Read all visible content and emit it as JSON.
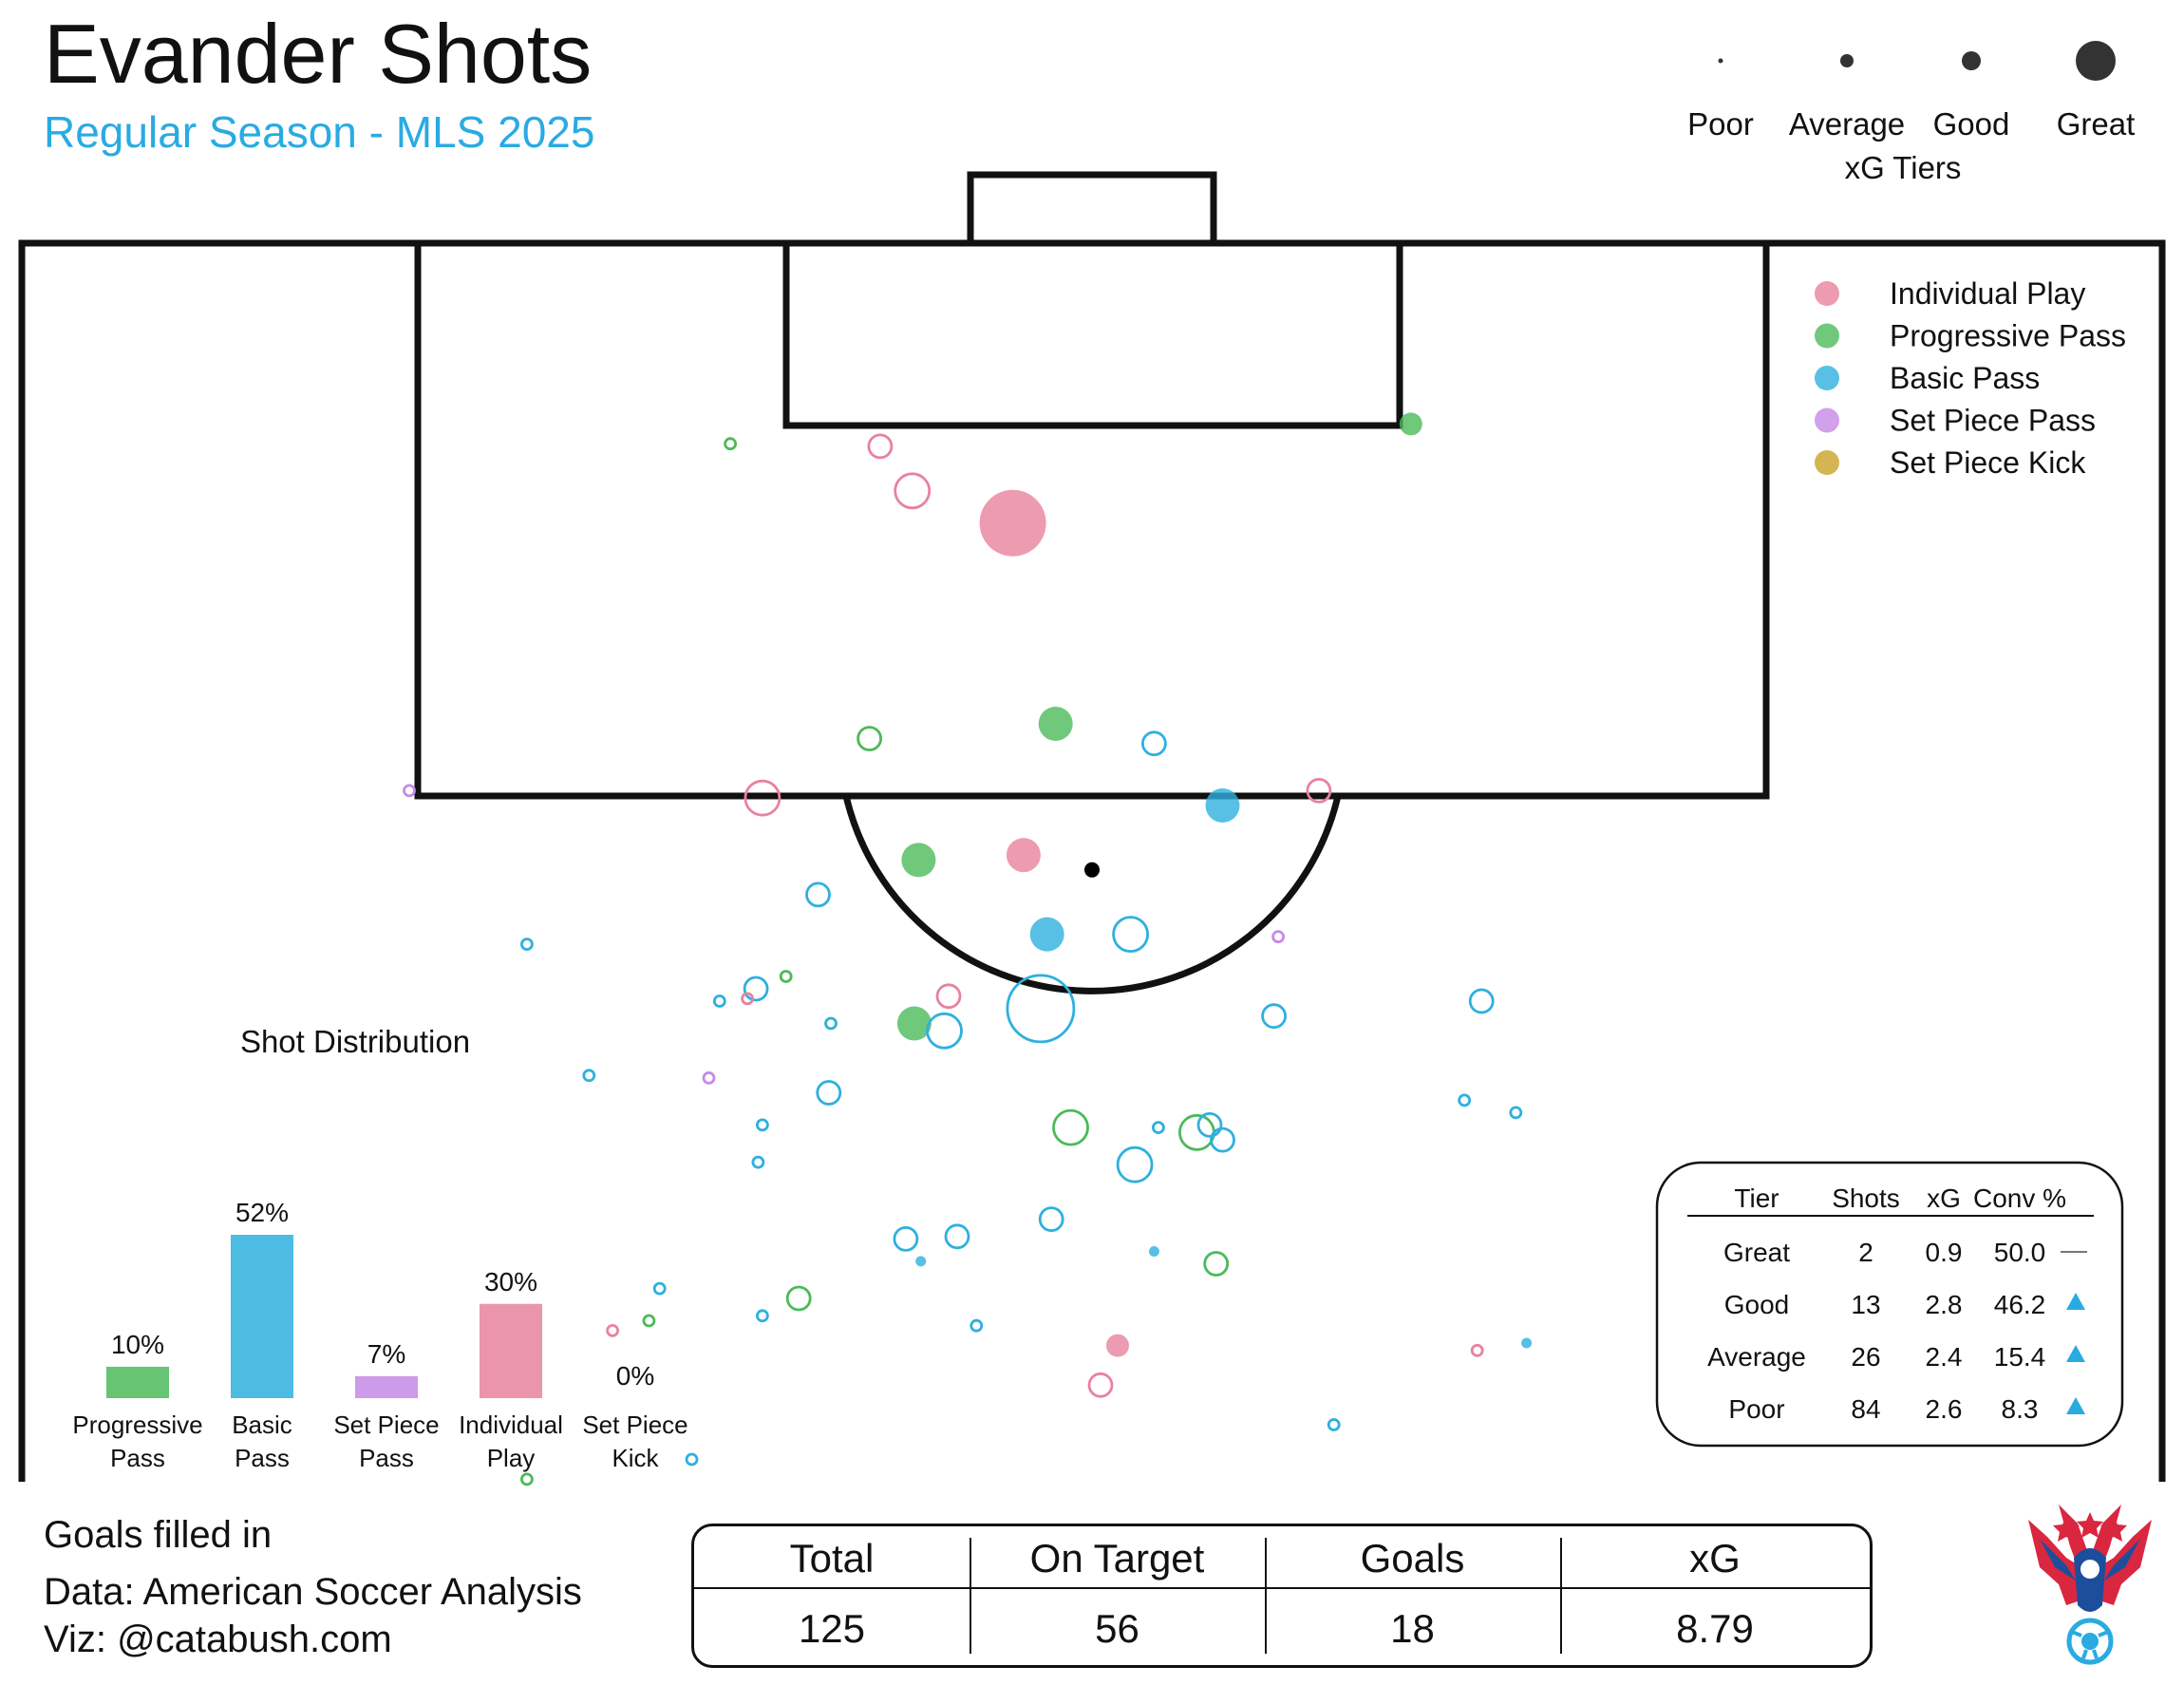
{
  "header": {
    "title": "Evander Shots",
    "subtitle": "Regular Season - MLS 2025"
  },
  "colors": {
    "individual_play": "#e8829d",
    "progressive_pass": "#4cba5a",
    "basic_pass": "#2eb0de",
    "set_piece_pass": "#c68ae6",
    "set_piece_kick": "#c9a227",
    "subtitle": "#29abe2",
    "arrow": "#29abe2"
  },
  "size_legend": {
    "title": "xG Tiers",
    "tiers": [
      "Poor",
      "Average",
      "Good",
      "Great"
    ]
  },
  "type_legend": [
    "Individual Play",
    "Progressive Pass",
    "Basic Pass",
    "Set Piece Pass",
    "Set Piece Kick"
  ],
  "tier_table": {
    "headers": [
      "Tier",
      "Shots",
      "xG",
      "Conv %"
    ],
    "rows": [
      {
        "tier": "Great",
        "shots": "2",
        "xg": "0.9",
        "conv": "50.0",
        "trend": "flat"
      },
      {
        "tier": "Good",
        "shots": "13",
        "xg": "2.8",
        "conv": "46.2",
        "trend": "up"
      },
      {
        "tier": "Average",
        "shots": "26",
        "xg": "2.4",
        "conv": "15.4",
        "trend": "up"
      },
      {
        "tier": "Poor",
        "shots": "84",
        "xg": "2.6",
        "conv": "8.3",
        "trend": "up"
      }
    ]
  },
  "summary": {
    "headers": [
      "Total",
      "On Target",
      "Goals",
      "xG"
    ],
    "values": [
      "125",
      "56",
      "18",
      "8.79"
    ]
  },
  "credits": {
    "note": "Goals filled in",
    "data": "Data: American Soccer Analysis",
    "viz": "Viz: @catabush.com"
  },
  "chart_data": [
    {
      "type": "bar",
      "title": "Shot Distribution",
      "categories": [
        [
          "Progressive",
          "Pass"
        ],
        [
          "Basic",
          "Pass"
        ],
        [
          "Set Piece",
          "Pass"
        ],
        [
          "Individual",
          "Play"
        ],
        [
          "Set Piece",
          "Kick"
        ]
      ],
      "series_keys": [
        "progressive_pass",
        "basic_pass",
        "set_piece_pass",
        "individual_play",
        "set_piece_kick"
      ],
      "values": [
        10,
        52,
        7,
        30,
        0
      ],
      "value_labels": [
        "10%",
        "52%",
        "7%",
        "30%",
        "0%"
      ],
      "ylim": [
        0,
        52
      ]
    },
    {
      "type": "scatter",
      "description_units": "pitch attacking half: x 0-100 across width, y 0-50 from goal line",
      "size_key": {
        "poor": 1,
        "average": 2,
        "good": 3,
        "great": 4
      },
      "points": [
        {
          "x": 46.3,
          "y": 11.3,
          "t": "individual_play",
          "s": 4,
          "g": true
        },
        {
          "x": 40.1,
          "y": 8.2,
          "t": "individual_play",
          "s": 2,
          "g": false
        },
        {
          "x": 41.6,
          "y": 10.0,
          "t": "individual_play",
          "s": 3,
          "g": false
        },
        {
          "x": 33.1,
          "y": 8.1,
          "t": "progressive_pass",
          "s": 1,
          "g": false
        },
        {
          "x": 64.9,
          "y": 7.3,
          "t": "progressive_pass",
          "s": 2,
          "g": true
        },
        {
          "x": 48.3,
          "y": 19.4,
          "t": "progressive_pass",
          "s": 3,
          "g": true
        },
        {
          "x": 39.6,
          "y": 20.0,
          "t": "progressive_pass",
          "s": 2,
          "g": false
        },
        {
          "x": 52.9,
          "y": 20.2,
          "t": "basic_pass",
          "s": 2,
          "g": false
        },
        {
          "x": 34.6,
          "y": 22.4,
          "t": "individual_play",
          "s": 3,
          "g": false
        },
        {
          "x": 41.9,
          "y": 24.9,
          "t": "progressive_pass",
          "s": 3,
          "g": true
        },
        {
          "x": 46.8,
          "y": 24.7,
          "t": "individual_play",
          "s": 3,
          "g": true
        },
        {
          "x": 50.0,
          "y": 25.3,
          "t": "black",
          "s": 1,
          "g": true
        },
        {
          "x": 56.1,
          "y": 22.7,
          "t": "basic_pass",
          "s": 3,
          "g": true
        },
        {
          "x": 60.6,
          "y": 22.1,
          "t": "individual_play",
          "s": 2,
          "g": false
        },
        {
          "x": 18.1,
          "y": 22.1,
          "t": "set_piece_pass",
          "s": 1,
          "g": false
        },
        {
          "x": 23.6,
          "y": 28.3,
          "t": "basic_pass",
          "s": 1,
          "g": false
        },
        {
          "x": 37.2,
          "y": 26.3,
          "t": "basic_pass",
          "s": 2,
          "g": false
        },
        {
          "x": 47.9,
          "y": 27.9,
          "t": "basic_pass",
          "s": 3,
          "g": true
        },
        {
          "x": 51.8,
          "y": 27.9,
          "t": "basic_pass",
          "s": 3,
          "g": false
        },
        {
          "x": 58.7,
          "y": 28.0,
          "t": "set_piece_pass",
          "s": 1,
          "g": false
        },
        {
          "x": 34.3,
          "y": 30.1,
          "t": "basic_pass",
          "s": 2,
          "g": false
        },
        {
          "x": 33.9,
          "y": 30.5,
          "t": "individual_play",
          "s": 1,
          "g": false
        },
        {
          "x": 35.7,
          "y": 29.6,
          "t": "progressive_pass",
          "s": 1,
          "g": false
        },
        {
          "x": 32.6,
          "y": 30.6,
          "t": "basic_pass",
          "s": 1,
          "g": false
        },
        {
          "x": 43.3,
          "y": 30.4,
          "t": "individual_play",
          "s": 2,
          "g": false
        },
        {
          "x": 47.6,
          "y": 30.9,
          "t": "basic_pass",
          "s": 4,
          "g": false
        },
        {
          "x": 68.2,
          "y": 30.6,
          "t": "basic_pass",
          "s": 2,
          "g": false
        },
        {
          "x": 58.5,
          "y": 31.2,
          "t": "basic_pass",
          "s": 2,
          "g": false
        },
        {
          "x": 41.7,
          "y": 31.5,
          "t": "progressive_pass",
          "s": 3,
          "g": true
        },
        {
          "x": 43.1,
          "y": 31.8,
          "t": "basic_pass",
          "s": 3,
          "g": false
        },
        {
          "x": 37.8,
          "y": 31.5,
          "t": "basic_pass",
          "s": 1,
          "g": false
        },
        {
          "x": 26.5,
          "y": 33.6,
          "t": "basic_pass",
          "s": 1,
          "g": false
        },
        {
          "x": 32.1,
          "y": 33.7,
          "t": "set_piece_pass",
          "s": 1,
          "g": false
        },
        {
          "x": 37.7,
          "y": 34.3,
          "t": "basic_pass",
          "s": 2,
          "g": false
        },
        {
          "x": 67.4,
          "y": 34.6,
          "t": "basic_pass",
          "s": 1,
          "g": false
        },
        {
          "x": 69.8,
          "y": 35.1,
          "t": "basic_pass",
          "s": 1,
          "g": false
        },
        {
          "x": 34.6,
          "y": 35.6,
          "t": "basic_pass",
          "s": 1,
          "g": false
        },
        {
          "x": 49.0,
          "y": 35.7,
          "t": "progressive_pass",
          "s": 3,
          "g": false
        },
        {
          "x": 53.1,
          "y": 35.7,
          "t": "basic_pass",
          "s": 1,
          "g": false
        },
        {
          "x": 54.9,
          "y": 35.9,
          "t": "progressive_pass",
          "s": 3,
          "g": false
        },
        {
          "x": 55.5,
          "y": 35.6,
          "t": "basic_pass",
          "s": 2,
          "g": false
        },
        {
          "x": 56.1,
          "y": 36.2,
          "t": "basic_pass",
          "s": 2,
          "g": false
        },
        {
          "x": 34.4,
          "y": 37.1,
          "t": "basic_pass",
          "s": 1,
          "g": false
        },
        {
          "x": 52.0,
          "y": 37.2,
          "t": "basic_pass",
          "s": 3,
          "g": false
        },
        {
          "x": 41.3,
          "y": 40.2,
          "t": "basic_pass",
          "s": 2,
          "g": false
        },
        {
          "x": 43.7,
          "y": 40.1,
          "t": "basic_pass",
          "s": 2,
          "g": false
        },
        {
          "x": 48.1,
          "y": 39.4,
          "t": "basic_pass",
          "s": 2,
          "g": false
        },
        {
          "x": 42.0,
          "y": 41.1,
          "t": "basic_pass",
          "s": 1,
          "g": true
        },
        {
          "x": 52.9,
          "y": 40.7,
          "t": "basic_pass",
          "s": 1,
          "g": true
        },
        {
          "x": 55.8,
          "y": 41.2,
          "t": "progressive_pass",
          "s": 2,
          "g": false
        },
        {
          "x": 29.8,
          "y": 42.2,
          "t": "basic_pass",
          "s": 1,
          "g": false
        },
        {
          "x": 36.3,
          "y": 42.6,
          "t": "progressive_pass",
          "s": 2,
          "g": false
        },
        {
          "x": 34.6,
          "y": 43.3,
          "t": "basic_pass",
          "s": 1,
          "g": false
        },
        {
          "x": 29.3,
          "y": 43.5,
          "t": "progressive_pass",
          "s": 1,
          "g": false
        },
        {
          "x": 27.6,
          "y": 43.9,
          "t": "individual_play",
          "s": 1,
          "g": false
        },
        {
          "x": 44.6,
          "y": 43.7,
          "t": "basic_pass",
          "s": 1,
          "g": false
        },
        {
          "x": 51.2,
          "y": 44.5,
          "t": "individual_play",
          "s": 2,
          "g": true
        },
        {
          "x": 50.4,
          "y": 46.1,
          "t": "individual_play",
          "s": 2,
          "g": false
        },
        {
          "x": 68.0,
          "y": 44.7,
          "t": "individual_play",
          "s": 1,
          "g": false
        },
        {
          "x": 70.3,
          "y": 44.4,
          "t": "basic_pass",
          "s": 1,
          "g": true
        },
        {
          "x": 61.3,
          "y": 47.7,
          "t": "basic_pass",
          "s": 1,
          "g": false
        },
        {
          "x": 31.3,
          "y": 49.1,
          "t": "basic_pass",
          "s": 1,
          "g": false
        },
        {
          "x": 23.6,
          "y": 49.9,
          "t": "progressive_pass",
          "s": 1,
          "g": false
        }
      ]
    }
  ]
}
